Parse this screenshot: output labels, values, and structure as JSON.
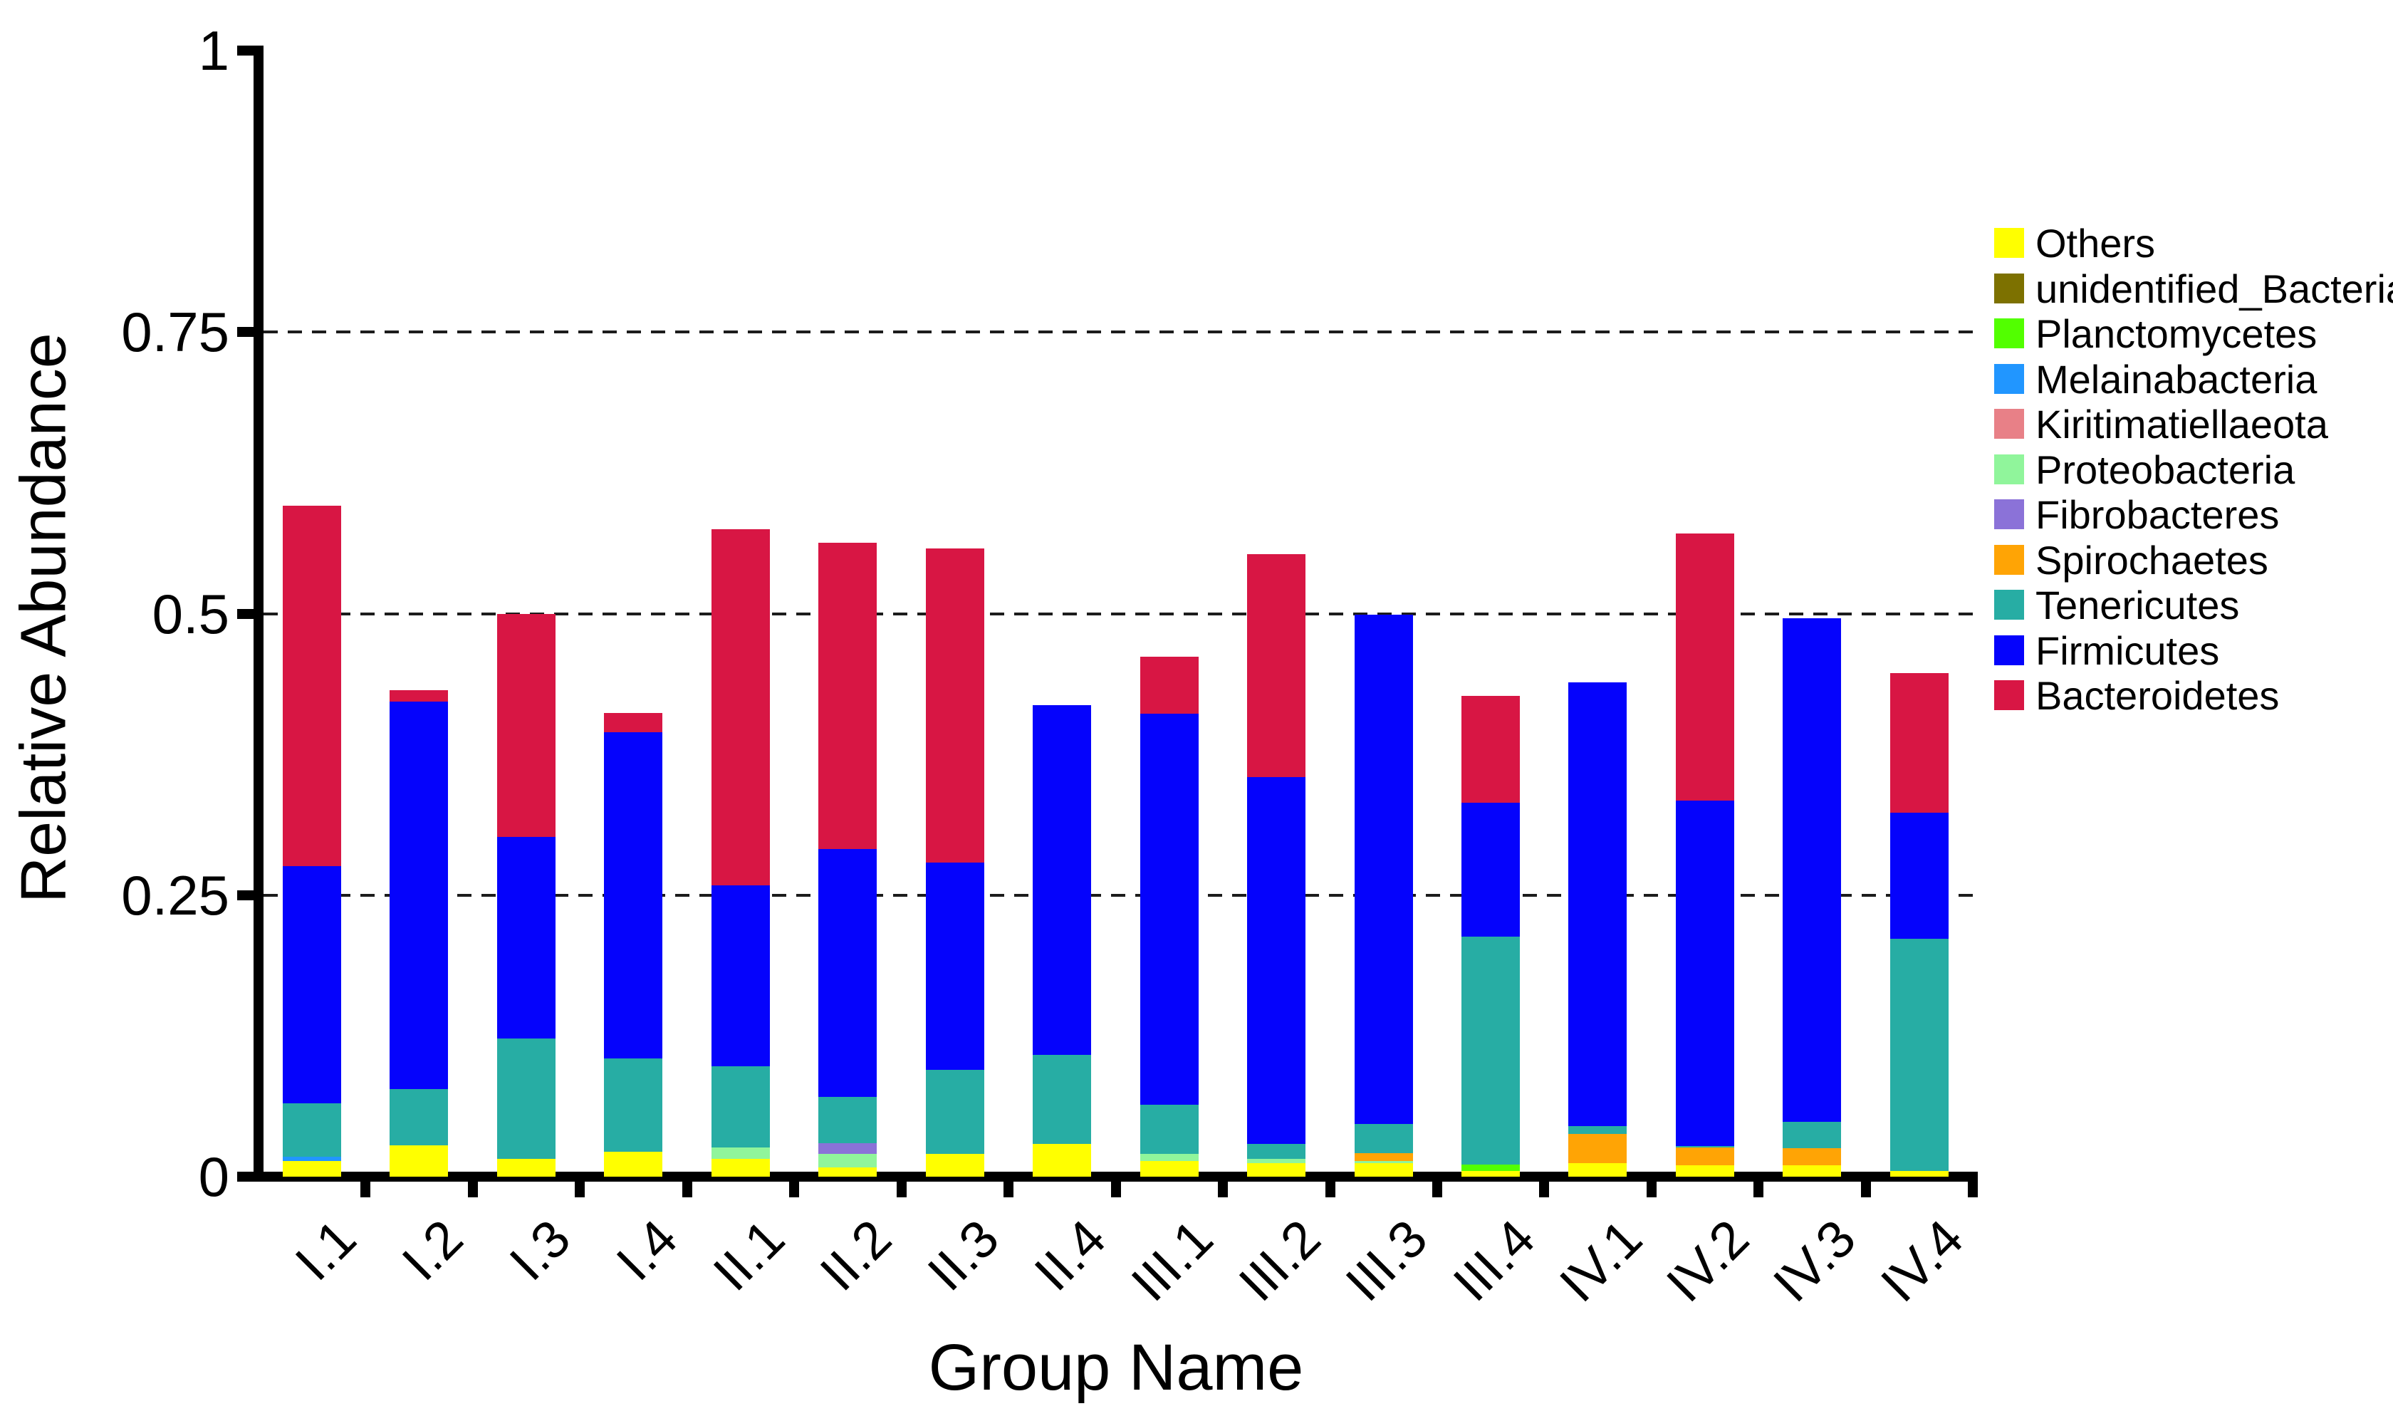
{
  "chart_data": {
    "type": "bar",
    "stacked": true,
    "title": "",
    "xlabel": "Group Name",
    "ylabel": "Relative Abundance",
    "ylim": [
      0,
      1
    ],
    "grid": "dashed horizontal at 0.25 / 0.5 / 0.75",
    "legend_position": "right",
    "yticks": [
      {
        "value": 0.0,
        "label": "0"
      },
      {
        "value": 0.25,
        "label": "0.25"
      },
      {
        "value": 0.5,
        "label": "0.5"
      },
      {
        "value": 0.75,
        "label": "0.75"
      },
      {
        "value": 1.0,
        "label": "1"
      }
    ],
    "gridline_values": [
      0.25,
      0.5,
      0.75
    ],
    "categories": [
      "I.1",
      "I.2",
      "I.3",
      "I.4",
      "II.1",
      "II.2",
      "II.3",
      "II.4",
      "III.1",
      "III.2",
      "III.3",
      "III.4",
      "IV.1",
      "IV.2",
      "IV.3",
      "IV.4"
    ],
    "legend_order_top_to_bottom": [
      "Others",
      "unidentified_Bacteria",
      "Planctomycetes",
      "Melainabacteria",
      "Kiritimatiellaeota",
      "Proteobacteria",
      "Fibrobacteres",
      "Spirochaetes",
      "Tenericutes",
      "Firmicutes",
      "Bacteroidetes"
    ],
    "series": [
      {
        "name": "Bacteroidetes",
        "color": "#D81644",
        "values": [
          0.596,
          0.432,
          0.5,
          0.412,
          0.575,
          0.563,
          0.558,
          0.384,
          0.462,
          0.553,
          0.384,
          0.427,
          0.424,
          0.571,
          0.389,
          0.447
        ]
      },
      {
        "name": "Firmicutes",
        "color": "#0503FC",
        "values": [
          0.276,
          0.422,
          0.302,
          0.395,
          0.259,
          0.291,
          0.279,
          0.419,
          0.411,
          0.355,
          0.499,
          0.332,
          0.439,
          0.334,
          0.496,
          0.323
        ]
      },
      {
        "name": "Tenericutes",
        "color": "#27ADA4",
        "values": [
          0.065,
          0.078,
          0.123,
          0.105,
          0.098,
          0.071,
          0.095,
          0.108,
          0.064,
          0.029,
          0.047,
          0.213,
          0.045,
          0.027,
          0.049,
          0.211
        ]
      },
      {
        "name": "Spirochaetes",
        "color": "#FFA405",
        "values": [
          0.009,
          0.01,
          0.013,
          0.01,
          0.011,
          0.007,
          0.017,
          0.014,
          0.013,
          0.014,
          0.021,
          0.003,
          0.038,
          0.026,
          0.025,
          0.005
        ]
      },
      {
        "name": "Fibrobacteres",
        "color": "#8B72D8",
        "values": [
          0.002,
          0.002,
          0.003,
          0.002,
          0.002,
          0.03,
          0.001,
          0.002,
          0.004,
          0.006,
          0.004,
          0.001,
          0.006,
          0.006,
          0.004,
          0.001
        ]
      },
      {
        "name": "Proteobacteria",
        "color": "#90F59B",
        "values": [
          0.004,
          0.007,
          0.008,
          0.013,
          0.026,
          0.02,
          0.009,
          0.01,
          0.02,
          0.016,
          0.014,
          0.002,
          0.009,
          0.009,
          0.006,
          0.002
        ]
      },
      {
        "name": "Kiritimatiellaeota",
        "color": "#E88087",
        "values": [
          0.005,
          0.002,
          0.007,
          0.006,
          0.002,
          0.002,
          0.001,
          0.01,
          0.001,
          0.003,
          0.009,
          0.001,
          0.012,
          0.007,
          0.003,
          0.001
        ]
      },
      {
        "name": "Melainabacteria",
        "color": "#2196FF",
        "values": [
          0.018,
          0.007,
          0.013,
          0.007,
          0.002,
          0.002,
          0.012,
          0.005,
          0.003,
          0.003,
          0.004,
          0.001,
          0.002,
          0.005,
          0.007,
          0.001
        ]
      },
      {
        "name": "Planctomycetes",
        "color": "#52FF00",
        "values": [
          0.008,
          0.011,
          0.011,
          0.021,
          0.003,
          0.002,
          0.007,
          0.007,
          0.007,
          0.004,
          0.005,
          0.011,
          0.005,
          0.001,
          0.005,
          0.003
        ]
      },
      {
        "name": "unidentified_Bacteria",
        "color": "#7D7100",
        "values": [
          0.003,
          0.001,
          0.004,
          0.007,
          0.006,
          0.004,
          0.001,
          0.012,
          0.001,
          0.005,
          0.001,
          0.004,
          0.008,
          0.004,
          0.006,
          0.001
        ]
      },
      {
        "name": "Others",
        "color": "#FFFF00",
        "values": [
          0.014,
          0.028,
          0.016,
          0.022,
          0.016,
          0.008,
          0.02,
          0.029,
          0.014,
          0.012,
          0.012,
          0.005,
          0.012,
          0.01,
          0.01,
          0.005
        ]
      }
    ]
  }
}
